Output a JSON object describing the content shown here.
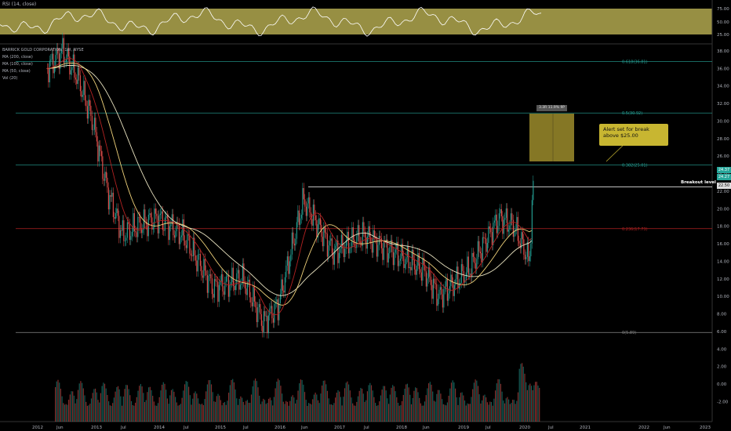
{
  "rsi_panel": {
    "title": "RSI (14, close)",
    "ticks": [
      "75.00",
      "50.00",
      "25.00"
    ],
    "band_color": "#c9bf5a"
  },
  "main_legend": {
    "symbol": "BARRICK GOLD CORPORATION, 1W, NYSE",
    "ma200": "MA (200, close)",
    "ma100": "MA (100, close)",
    "ma50": "MA (50, close)",
    "vol": "Vol (20)"
  },
  "price_axis_ticks": [
    "38.00",
    "36.00",
    "34.00",
    "32.00",
    "30.00",
    "28.00",
    "26.00",
    "24.00",
    "22.00",
    "20.00",
    "18.00",
    "16.00",
    "14.00",
    "12.00",
    "10.00",
    "8.00",
    "6.00",
    "4.00",
    "2.00",
    "0.00",
    "-2.00"
  ],
  "time_axis_ticks": [
    "2012",
    "Jun",
    "2013",
    "Jul",
    "2014",
    "Jul",
    "2015",
    "Jul",
    "2016",
    "Jun",
    "2017",
    "Jul",
    "2018",
    "Jun",
    "2019",
    "Jul",
    "2020",
    "Jul",
    "2021",
    "2022",
    "Jun",
    "2023"
  ],
  "fib_levels": [
    {
      "label": "0.618(36.81)",
      "price": 36.81,
      "color": "#26a69a"
    },
    {
      "label": "0.5(30.92)",
      "price": 30.92,
      "color": "#26a69a"
    },
    {
      "label": "0.382(25.01)",
      "price": 25.01,
      "color": "#26a69a"
    },
    {
      "label": "0.236(17.73)",
      "price": 17.73,
      "color": "#b22222"
    },
    {
      "label": "0(5.89)",
      "price": 5.89,
      "color": "#888888"
    }
  ],
  "breakout": {
    "label": "Breakout level",
    "price": 22.5,
    "price_tag": "22.50"
  },
  "price_tags": [
    "24.37",
    "24.27"
  ],
  "alert_note": "Alert set for break above $25.00",
  "box_label": "3.3R 11.9% 9P",
  "colors": {
    "up": "#26a69a",
    "down": "#ef5350",
    "ma200": "#e8e2c0",
    "ma100": "#f0d27a",
    "ma50": "#b22222"
  },
  "chart_data": {
    "type": "candlestick",
    "title": "BARRICK GOLD CORPORATION, 1W, NYSE",
    "x_range": [
      "2012",
      "2023"
    ],
    "y_range": [
      -2,
      38
    ],
    "approx_closes": [
      {
        "date": "2012-03",
        "close": 36
      },
      {
        "date": "2012-06",
        "close": 38
      },
      {
        "date": "2012-09",
        "close": 35
      },
      {
        "date": "2012-12",
        "close": 30
      },
      {
        "date": "2013-03",
        "close": 22
      },
      {
        "date": "2013-06",
        "close": 17
      },
      {
        "date": "2013-09",
        "close": 18
      },
      {
        "date": "2014-01",
        "close": 19
      },
      {
        "date": "2014-06",
        "close": 17
      },
      {
        "date": "2014-12",
        "close": 11
      },
      {
        "date": "2015-06",
        "close": 12
      },
      {
        "date": "2015-10",
        "close": 7
      },
      {
        "date": "2016-01",
        "close": 9
      },
      {
        "date": "2016-06",
        "close": 21
      },
      {
        "date": "2016-12",
        "close": 15
      },
      {
        "date": "2017-06",
        "close": 17
      },
      {
        "date": "2017-12",
        "close": 15
      },
      {
        "date": "2018-06",
        "close": 13
      },
      {
        "date": "2018-09",
        "close": 10
      },
      {
        "date": "2019-03",
        "close": 13
      },
      {
        "date": "2019-09",
        "close": 19
      },
      {
        "date": "2019-12",
        "close": 18
      },
      {
        "date": "2020-03",
        "close": 14
      },
      {
        "date": "2020-04",
        "close": 24.5
      }
    ]
  }
}
